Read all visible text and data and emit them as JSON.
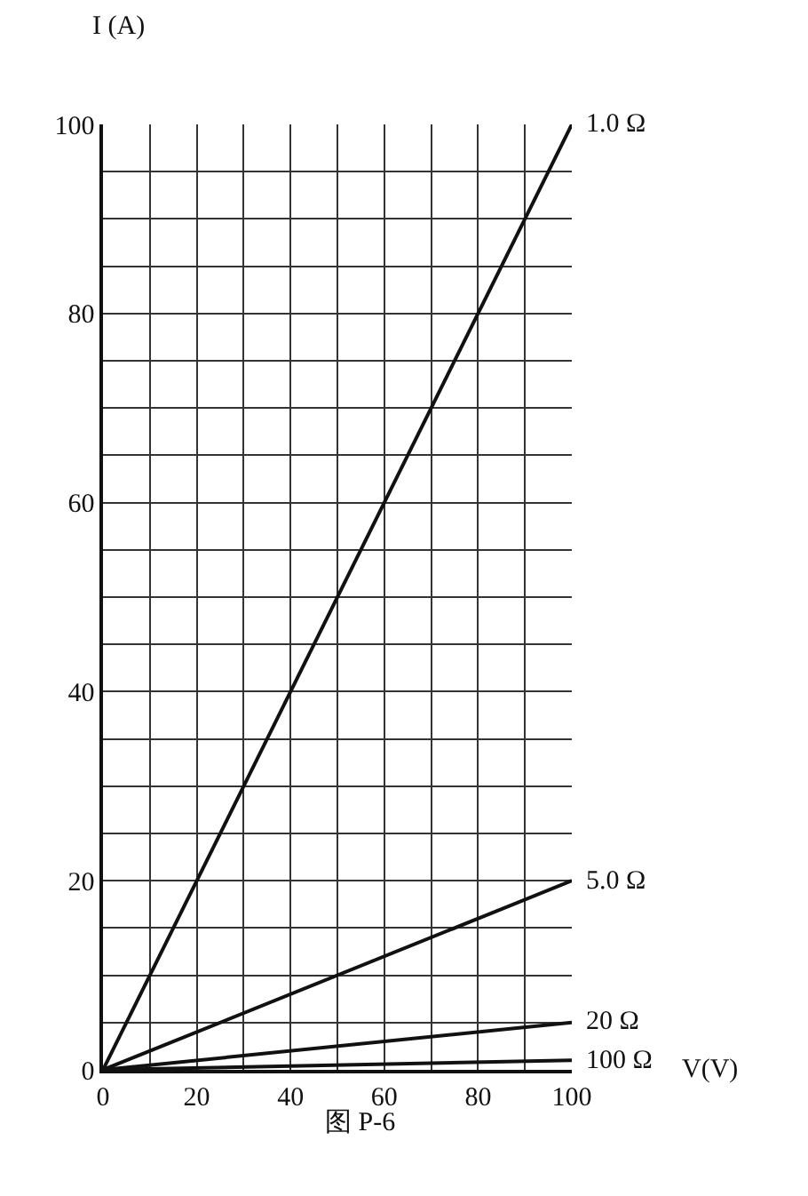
{
  "chart_data": {
    "type": "line",
    "xlabel": "V(V)",
    "ylabel": "I (A)",
    "x": [
      0,
      100
    ],
    "series": [
      {
        "name": "1.0 Ω",
        "color": "#111111",
        "values": [
          0,
          100
        ]
      },
      {
        "name": "5.0 Ω",
        "color": "#111111",
        "values": [
          0,
          20
        ]
      },
      {
        "name": "20 Ω",
        "color": "#111111",
        "values": [
          0,
          5
        ]
      },
      {
        "name": "100 Ω",
        "color": "#111111",
        "values": [
          0,
          1
        ]
      }
    ],
    "xlim": [
      0,
      100
    ],
    "ylim": [
      0,
      100
    ],
    "xticks": [
      0,
      {
        "value": 10,
        "label": null
      },
      20,
      {
        "value": 30,
        "label": null
      },
      40,
      {
        "value": 50,
        "label": null
      },
      60,
      {
        "value": 70,
        "label": null
      },
      80,
      {
        "value": 90,
        "label": null
      },
      100
    ],
    "yticks": [
      0,
      {
        "value": 5,
        "label": null
      },
      {
        "value": 10,
        "label": null
      },
      {
        "value": 15,
        "label": null
      },
      20,
      {
        "value": 25,
        "label": null
      },
      {
        "value": 30,
        "label": null
      },
      {
        "value": 35,
        "label": null
      },
      40,
      {
        "value": 45,
        "label": null
      },
      {
        "value": 50,
        "label": null
      },
      {
        "value": 55,
        "label": null
      },
      60,
      {
        "value": 65,
        "label": null
      },
      {
        "value": 70,
        "label": null
      },
      {
        "value": 75,
        "label": null
      },
      80,
      {
        "value": 85,
        "label": null
      },
      {
        "value": 90,
        "label": null
      },
      {
        "value": 95,
        "label": null
      },
      100
    ],
    "grid": true,
    "legend": false,
    "marker": "none",
    "line_style": "solid",
    "annotations": [
      "图 P-6"
    ]
  }
}
